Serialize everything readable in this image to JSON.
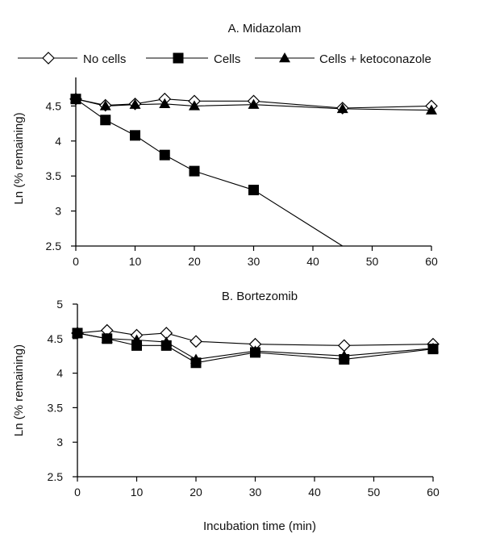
{
  "xlabel": "Incubation time (min)",
  "legend": [
    {
      "label": "No cells",
      "marker": "diamond-open"
    },
    {
      "label": "Cells",
      "marker": "square-filled"
    },
    {
      "label": "Cells + ketoconazole",
      "marker": "triangle-filled"
    }
  ],
  "chart_data": [
    {
      "type": "line",
      "title": "A.  Midazolam",
      "xlabel": "",
      "ylabel": "Ln (% remaining)",
      "xlim": [
        0,
        60
      ],
      "ylim": [
        2.5,
        5
      ],
      "xticks": [
        "0",
        "10",
        "20",
        "30",
        "40",
        "50",
        "60"
      ],
      "yticks": [
        "2.5",
        "3",
        "3.5",
        "4",
        "4.5"
      ],
      "x": [
        0,
        5,
        10,
        15,
        20,
        30,
        45,
        60
      ],
      "series": [
        {
          "name": "No cells",
          "marker": "diamond-open",
          "x": [
            0,
            5,
            10,
            15,
            20,
            30,
            45,
            60
          ],
          "values": [
            4.6,
            4.51,
            4.53,
            4.6,
            4.57,
            4.57,
            4.47,
            4.5
          ]
        },
        {
          "name": "Cells",
          "marker": "square-filled",
          "x": [
            0,
            5,
            10,
            15,
            20,
            30
          ],
          "values": [
            4.6,
            4.3,
            4.08,
            3.8,
            3.57,
            3.3
          ],
          "trend_to": [
            45,
            2.5
          ]
        },
        {
          "name": "Cells + ketoconazole",
          "marker": "triangle-filled",
          "x": [
            0,
            5,
            10,
            15,
            20,
            30,
            45,
            60
          ],
          "values": [
            4.6,
            4.5,
            4.52,
            4.53,
            4.5,
            4.52,
            4.46,
            4.44
          ]
        }
      ],
      "grid": false,
      "legend_position": "top"
    },
    {
      "type": "line",
      "title": "B.  Bortezomib",
      "xlabel": "Incubation time (min)",
      "ylabel": "Ln (% remaining)",
      "xlim": [
        0,
        60
      ],
      "ylim": [
        2.5,
        5
      ],
      "xticks": [
        "0",
        "10",
        "20",
        "30",
        "40",
        "50",
        "60"
      ],
      "yticks": [
        "2.5",
        "3",
        "3.5",
        "4",
        "4.5",
        "5"
      ],
      "x": [
        0,
        5,
        10,
        15,
        20,
        30,
        45,
        60
      ],
      "series": [
        {
          "name": "No cells",
          "marker": "diamond-open",
          "x": [
            0,
            5,
            10,
            15,
            20,
            30,
            45,
            60
          ],
          "values": [
            4.58,
            4.62,
            4.55,
            4.58,
            4.46,
            4.42,
            4.4,
            4.42
          ]
        },
        {
          "name": "Cells",
          "marker": "square-filled",
          "x": [
            0,
            5,
            10,
            15,
            20,
            30,
            45,
            60
          ],
          "values": [
            4.58,
            4.5,
            4.4,
            4.4,
            4.15,
            4.3,
            4.2,
            4.35
          ]
        },
        {
          "name": "Cells + ketoconazole",
          "marker": "triangle-filled",
          "x": [
            0,
            5,
            10,
            15,
            20,
            30,
            45,
            60
          ],
          "values": [
            4.58,
            4.5,
            4.48,
            4.45,
            4.2,
            4.32,
            4.25,
            4.36
          ]
        }
      ],
      "grid": false
    }
  ]
}
